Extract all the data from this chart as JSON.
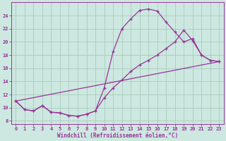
{
  "bg_color": "#cce8e0",
  "grid_color": "#aaccbb",
  "line_color": "#993399",
  "xlabel": "Windchill (Refroidissement éolien,°C)",
  "xlim": [
    -0.5,
    23.5
  ],
  "ylim": [
    7.5,
    26.0
  ],
  "xticks": [
    0,
    1,
    2,
    3,
    4,
    5,
    6,
    7,
    8,
    9,
    10,
    11,
    12,
    13,
    14,
    15,
    16,
    17,
    18,
    19,
    20,
    21,
    22,
    23
  ],
  "yticks": [
    8,
    10,
    12,
    14,
    16,
    18,
    20,
    22,
    24
  ],
  "curve1_x": [
    0,
    1,
    2,
    3,
    4,
    5,
    6,
    7,
    8,
    9,
    10,
    11,
    12,
    13,
    14,
    15,
    16,
    17,
    18,
    19,
    20,
    21,
    22,
    23
  ],
  "curve1_y": [
    11.0,
    9.7,
    9.5,
    10.3,
    9.3,
    9.2,
    8.8,
    8.7,
    9.0,
    9.5,
    13.0,
    18.5,
    22.0,
    23.5,
    24.8,
    25.0,
    24.7,
    23.0,
    21.5,
    20.0,
    20.5,
    18.0,
    17.2,
    17.0
  ],
  "curve2_x": [
    0,
    1,
    2,
    3,
    4,
    5,
    6,
    7,
    8,
    9,
    10,
    11,
    12,
    13,
    14,
    15,
    16,
    17,
    18,
    19,
    20,
    21,
    22,
    23
  ],
  "curve2_y": [
    11.0,
    9.7,
    9.5,
    10.3,
    9.3,
    9.2,
    8.8,
    8.7,
    9.0,
    9.5,
    11.5,
    13.0,
    14.2,
    15.5,
    16.5,
    17.2,
    18.0,
    19.0,
    20.0,
    21.8,
    20.2,
    18.0,
    17.2,
    17.0
  ],
  "curve3_x": [
    0,
    23
  ],
  "curve3_y": [
    11.0,
    17.0
  ]
}
